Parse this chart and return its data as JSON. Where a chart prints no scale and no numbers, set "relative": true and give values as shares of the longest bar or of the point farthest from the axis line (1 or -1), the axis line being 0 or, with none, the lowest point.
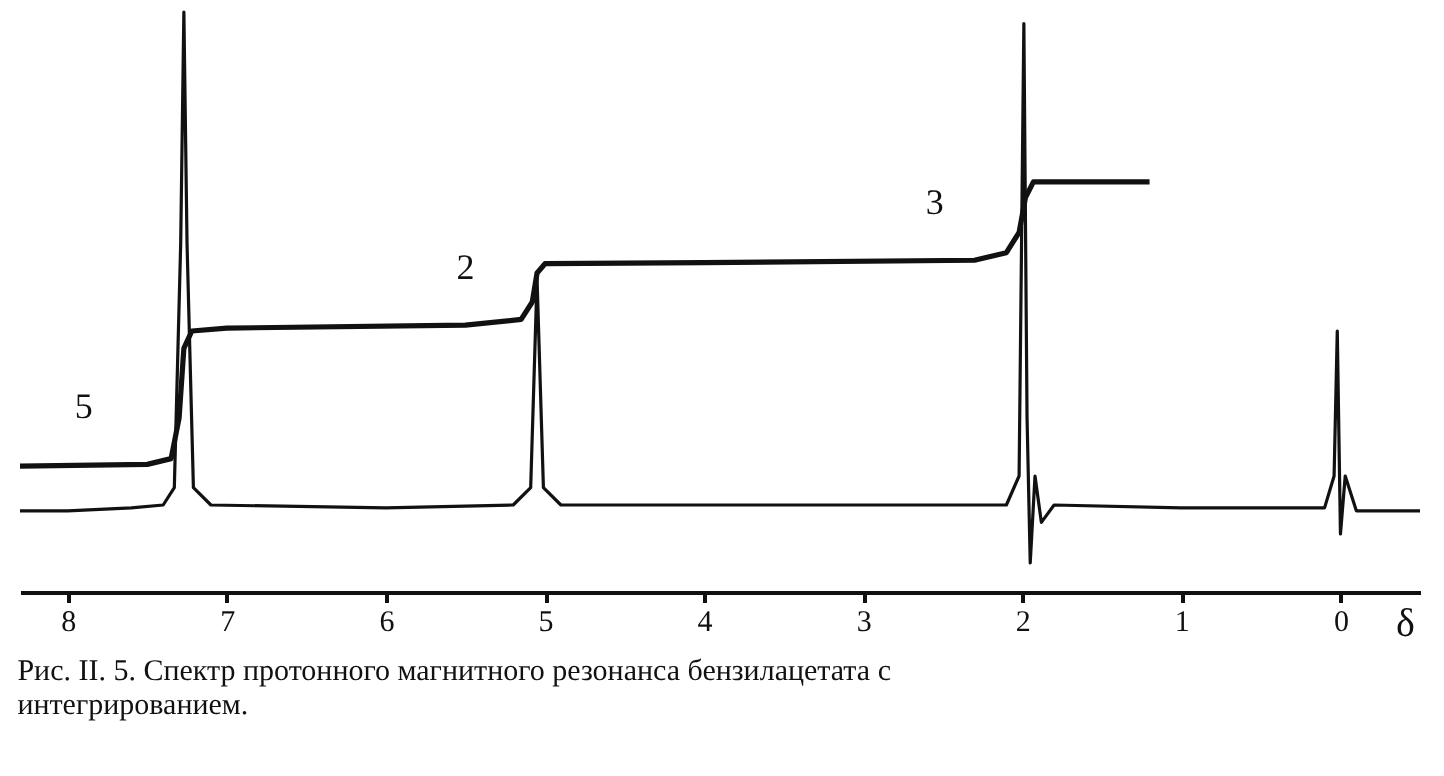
{
  "chart_data": {
    "type": "line",
    "relative": true,
    "xlabel": "δ",
    "xlim": [
      8.3,
      -0.5
    ],
    "xticks": [
      8,
      7,
      6,
      5,
      4,
      3,
      2,
      1,
      0
    ],
    "grid": false,
    "marker": "none",
    "line_style": "solid",
    "series": [
      {
        "color": "#111111",
        "x": [
          8.3,
          8.0,
          7.6,
          7.4,
          7.33,
          7.29,
          7.27,
          7.25,
          7.21,
          7.1,
          6.0,
          5.2,
          5.09,
          5.05,
          5.01,
          4.9,
          3.0,
          2.1,
          2.02,
          1.99,
          1.97,
          1.95,
          1.92,
          1.88,
          1.8,
          1.0,
          0.1,
          0.04,
          0.02,
          0.0,
          -0.03,
          -0.1,
          -0.5
        ],
        "values": [
          0.14,
          0.14,
          0.145,
          0.15,
          0.18,
          0.6,
          1.0,
          0.6,
          0.18,
          0.15,
          0.145,
          0.15,
          0.18,
          0.54,
          0.18,
          0.15,
          0.15,
          0.15,
          0.2,
          0.98,
          0.3,
          0.05,
          0.2,
          0.12,
          0.15,
          0.145,
          0.145,
          0.2,
          0.45,
          0.1,
          0.2,
          0.14,
          0.14
        ]
      },
      {
        "color": "#111111",
        "x": [
          8.3,
          7.5,
          7.35,
          7.3,
          7.27,
          7.22,
          7.0,
          5.5,
          5.15,
          5.08,
          5.05,
          5.0,
          4.0,
          2.3,
          2.1,
          2.02,
          1.98,
          1.93,
          1.2
        ],
        "values": [
          0.217,
          0.22,
          0.23,
          0.3,
          0.42,
          0.45,
          0.455,
          0.46,
          0.47,
          0.5,
          0.55,
          0.566,
          0.568,
          0.572,
          0.585,
          0.62,
          0.68,
          0.707,
          0.707
        ]
      }
    ],
    "annotations": [
      {
        "text": "5",
        "x": 7.9,
        "y": 0.22
      },
      {
        "text": "2",
        "x": 5.5,
        "y": 0.46
      },
      {
        "text": "3",
        "x": 2.55,
        "y": 0.572
      },
      "Рис. II. 5. Спектр протонного магнитного резонанса бензилацетата с интегрированием."
    ]
  }
}
